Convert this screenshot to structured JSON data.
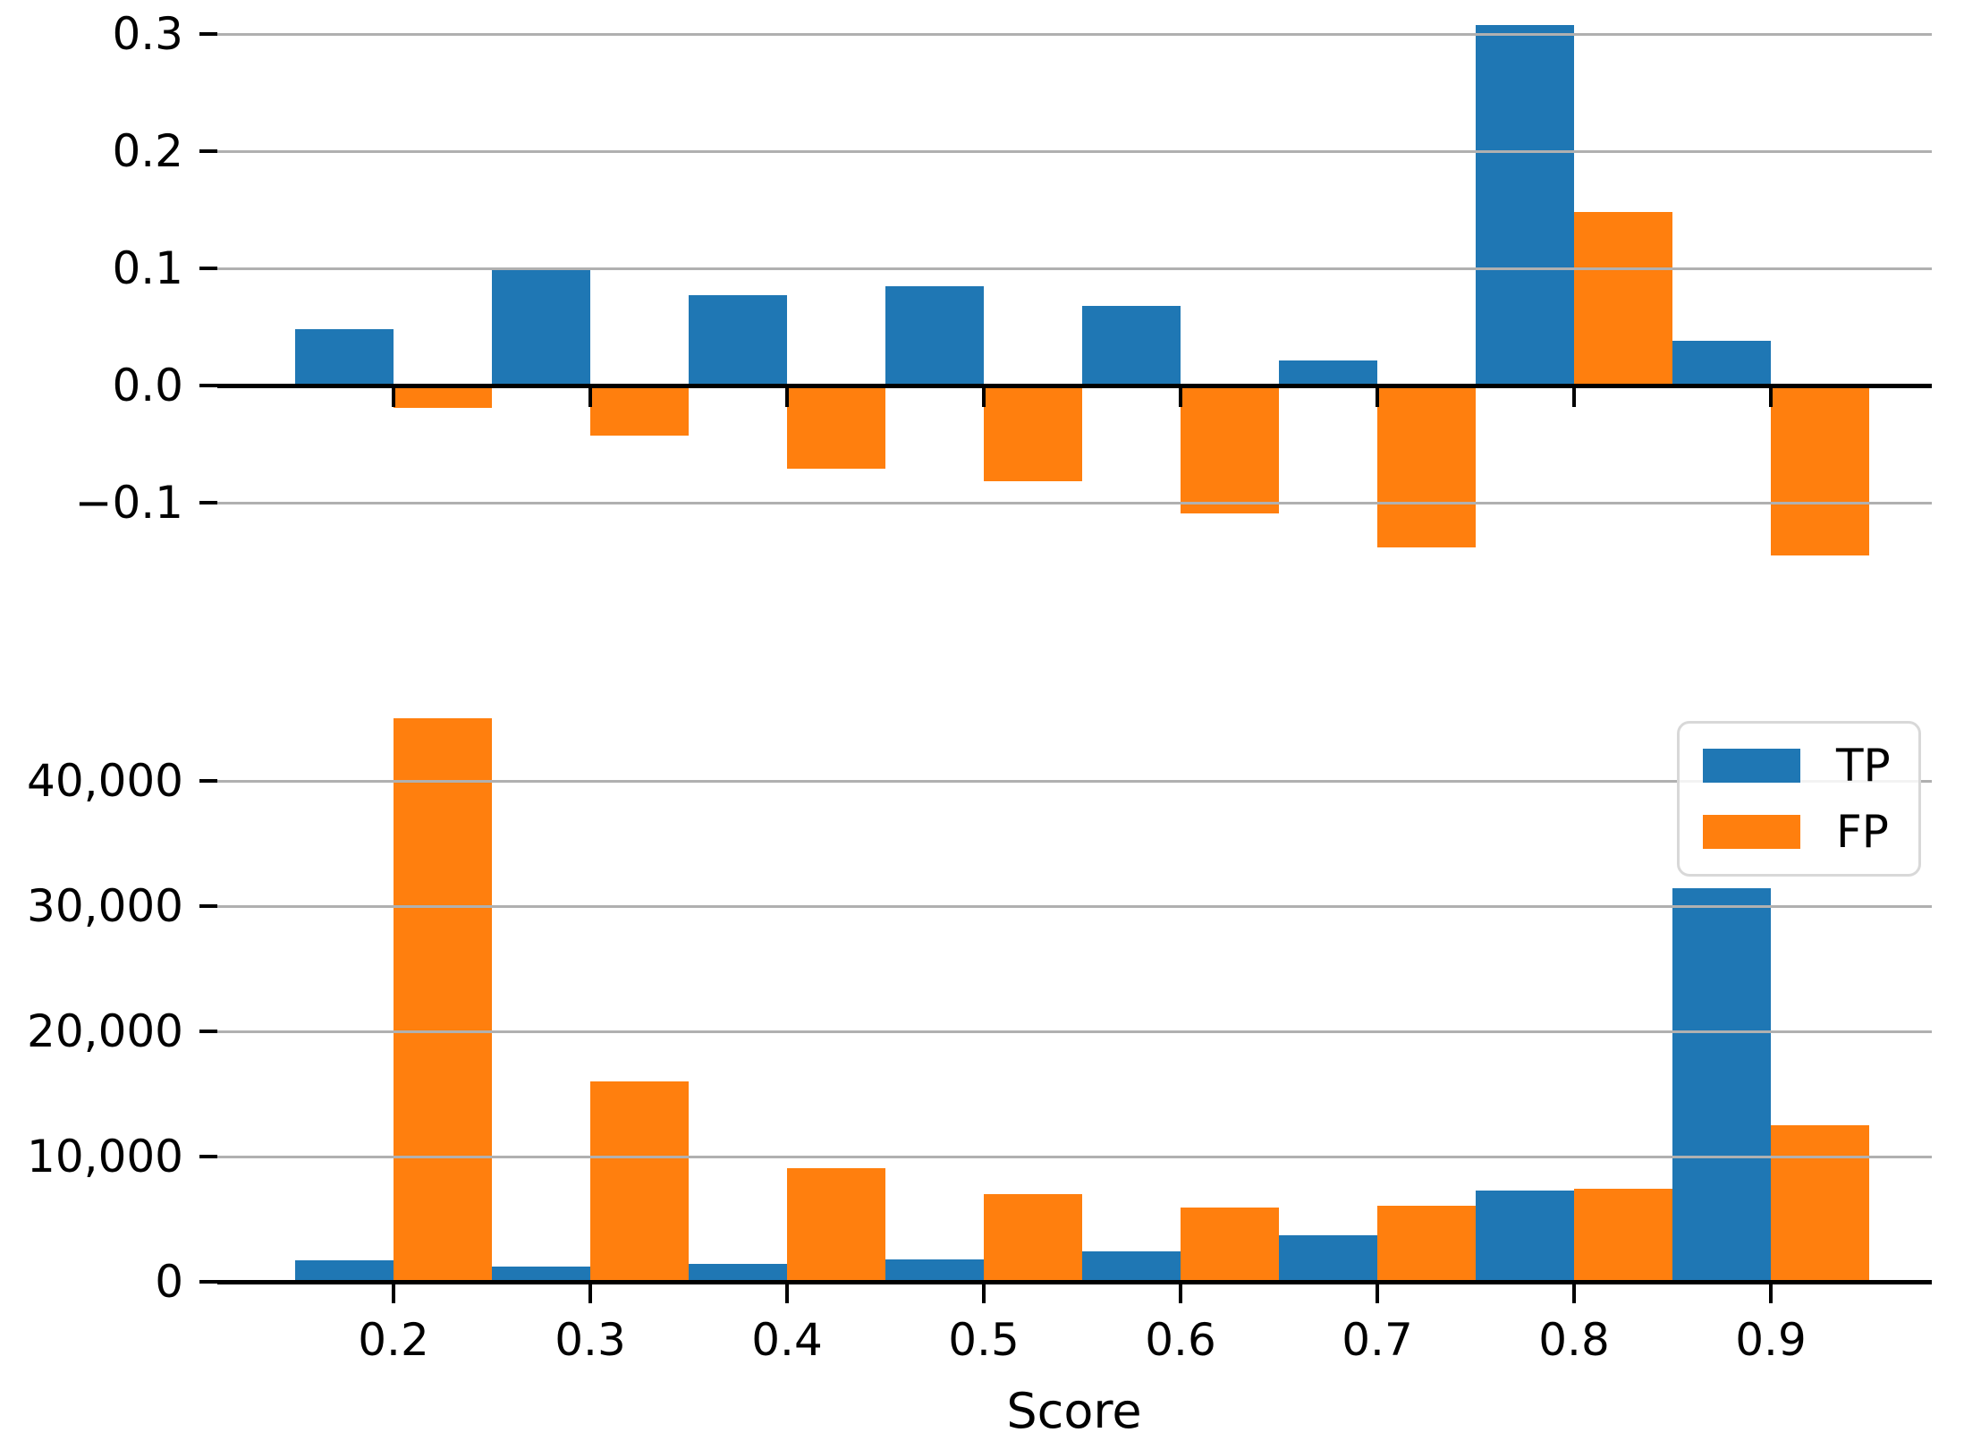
{
  "chart_data": [
    {
      "type": "bar",
      "panel": "top",
      "description": "per-bin delta values, blue TP positive, orange FP mostly negative",
      "categories": [
        0.2,
        0.3,
        0.4,
        0.5,
        0.6,
        0.7,
        0.8,
        0.9
      ],
      "series": [
        {
          "name": "TP",
          "color": "#1f77b4",
          "values": [
            0.048,
            0.1,
            0.077,
            0.085,
            0.068,
            0.021,
            0.308,
            0.038
          ]
        },
        {
          "name": "FP",
          "color": "#ff7f0e",
          "values": [
            -0.019,
            -0.043,
            -0.071,
            -0.082,
            -0.109,
            -0.138,
            0.148,
            -0.145
          ]
        }
      ],
      "ylim": [
        -0.175,
        0.33
      ],
      "yticks": [
        0.3,
        0.2,
        0.1,
        0.0,
        -0.1
      ],
      "ytick_labels": [
        "0.3",
        "0.2",
        "0.1",
        "0.0",
        "−0.1"
      ],
      "xlabel": "",
      "grid": true,
      "grid_color": "#b0b0b0",
      "x_tick_labels_shown": false
    },
    {
      "type": "bar",
      "panel": "bottom",
      "description": "per-bin counts histogram",
      "categories": [
        0.2,
        0.3,
        0.4,
        0.5,
        0.6,
        0.7,
        0.8,
        0.9
      ],
      "series": [
        {
          "name": "TP",
          "color": "#1f77b4",
          "values": [
            1700,
            1200,
            1400,
            1800,
            2400,
            3700,
            7300,
            31400
          ]
        },
        {
          "name": "FP",
          "color": "#ff7f0e",
          "values": [
            45000,
            16000,
            9100,
            7000,
            5900,
            6100,
            7400,
            12500
          ]
        }
      ],
      "ylim": [
        0,
        46500
      ],
      "yticks": [
        40000,
        30000,
        20000,
        10000,
        0
      ],
      "ytick_labels": [
        "40,000",
        "30,000",
        "20,000",
        "10,000",
        "0"
      ],
      "xtick_labels": [
        "0.2",
        "0.3",
        "0.4",
        "0.5",
        "0.6",
        "0.7",
        "0.8",
        "0.9"
      ],
      "xlabel": "Score",
      "grid": true,
      "grid_color": "#b0b0b0",
      "legend": {
        "entries": [
          "TP",
          "FP"
        ],
        "position": "upper right"
      }
    }
  ]
}
